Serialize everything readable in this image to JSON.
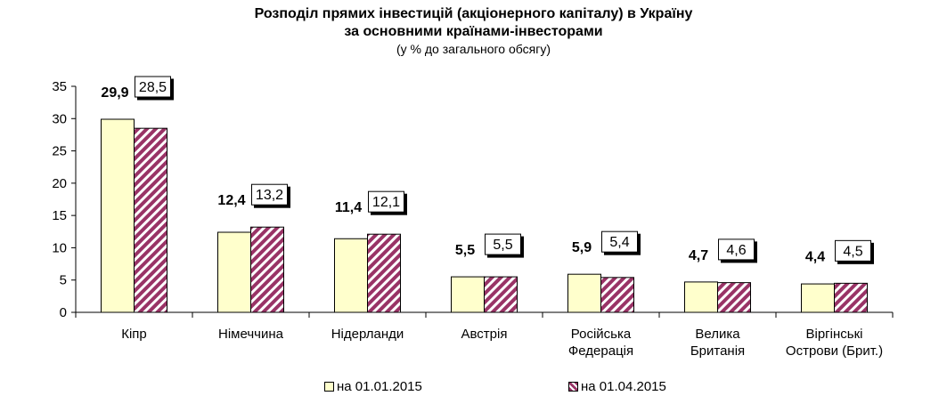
{
  "chart_data": {
    "type": "bar",
    "title": "Розподіл прямих інвестицій (акціонерного капіталу) в Україну",
    "title_line2": "за основними країнами-інвесторами",
    "subtitle": "(у % до загального обсягу)",
    "categories": [
      "Кіпр",
      "Німеччина",
      "Нідерланди",
      "Австрія",
      "Російська Федерація",
      "Велика Британія",
      "Віргінські Острови (Брит.)"
    ],
    "category_lines": [
      [
        "Кіпр"
      ],
      [
        "Німеччина"
      ],
      [
        "Нідерланди"
      ],
      [
        "Австрія"
      ],
      [
        "Російська",
        "Федерація"
      ],
      [
        "Велика",
        "Британія"
      ],
      [
        "Віргінські",
        "Острови (Брит.)"
      ]
    ],
    "series": [
      {
        "name": "на 01.01.2015",
        "values": [
          29.9,
          12.4,
          11.4,
          5.5,
          5.9,
          4.7,
          4.4
        ],
        "labels": [
          "29,9",
          "12,4",
          "11,4",
          "5,5",
          "5,9",
          "4,7",
          "4,4"
        ],
        "color": "#ffffcc",
        "pattern": "solid"
      },
      {
        "name": "на 01.04.2015",
        "values": [
          28.5,
          13.2,
          12.1,
          5.5,
          5.4,
          4.6,
          4.5
        ],
        "labels": [
          "28,5",
          "13,2",
          "12,1",
          "5,5",
          "5,4",
          "4,6",
          "4,5"
        ],
        "color": "#993366",
        "pattern": "diagonal-stripes"
      }
    ],
    "ylim": [
      0,
      35
    ],
    "yticks": [
      "0",
      "5",
      "10",
      "15",
      "20",
      "25",
      "30",
      "35"
    ],
    "xlabel": "",
    "ylabel": "",
    "grid": false,
    "legend_position": "bottom"
  }
}
